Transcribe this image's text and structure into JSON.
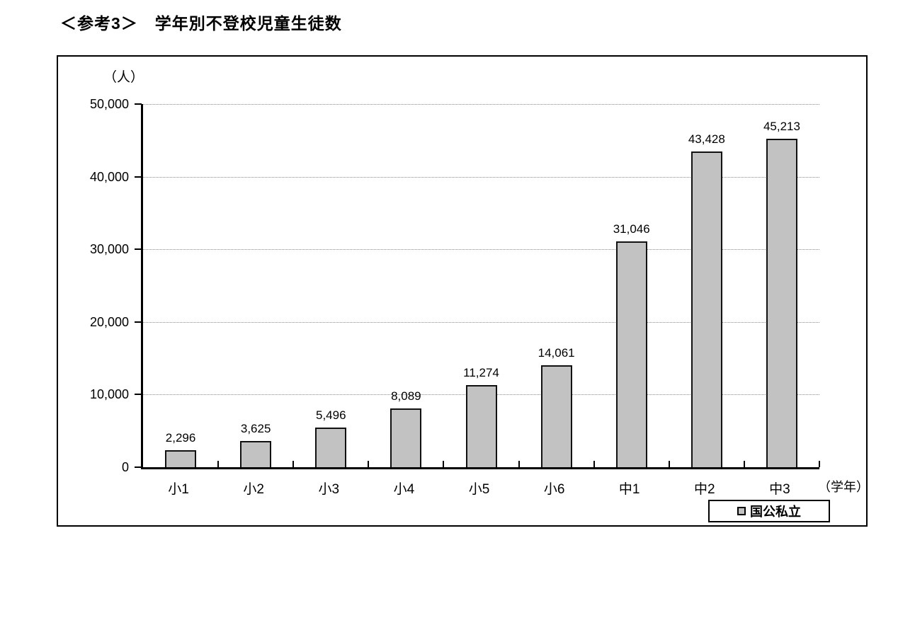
{
  "page": {
    "title": "＜参考3＞　学年別不登校児童生徒数"
  },
  "chart_data": {
    "type": "bar",
    "title": "学年別不登校児童生徒数",
    "unit_label": "（人）",
    "xlabel": "（学年）",
    "categories": [
      "小1",
      "小2",
      "小3",
      "小4",
      "小5",
      "小6",
      "中1",
      "中2",
      "中3"
    ],
    "values": [
      2296,
      3625,
      5496,
      8089,
      11274,
      14061,
      31046,
      43428,
      45213
    ],
    "value_labels": [
      "2,296",
      "3,625",
      "5,496",
      "8,089",
      "11,274",
      "14,061",
      "31,046",
      "43,428",
      "45,213"
    ],
    "y_ticks": [
      {
        "value": 50000,
        "label": "50,000"
      },
      {
        "value": 40000,
        "label": "40,000"
      },
      {
        "value": 30000,
        "label": "30,000"
      },
      {
        "value": 20000,
        "label": "20,000"
      },
      {
        "value": 10000,
        "label": "10,000"
      },
      {
        "value": 0,
        "label": "0"
      }
    ],
    "ylim": [
      0,
      50000
    ],
    "grid": "dotted-horizontal",
    "legend": [
      {
        "label": "国公私立",
        "color": "#c2c2c2"
      }
    ],
    "legend_position": "bottom-right",
    "bar_color": "#c2c2c2",
    "bar_border_color": "#111111",
    "axis_color": "#000000",
    "gridline_color": "#8a8a8a"
  }
}
